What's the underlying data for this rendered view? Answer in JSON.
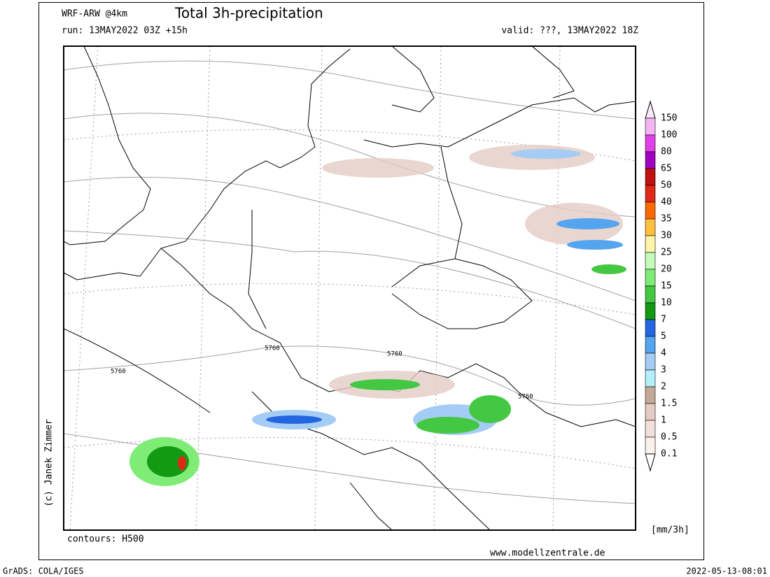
{
  "header": {
    "model": "WRF-ARW @4km",
    "title": "Total 3h-precipitation",
    "run": "run: 13MAY2022 03Z +15h",
    "valid": "valid: ???, 13MAY2022 18Z"
  },
  "map": {
    "contour_labels": [
      "5760",
      "5760",
      "5760",
      "5760"
    ],
    "contours_note": "contours: H500",
    "credit": "(c) Janek Zimmer",
    "website": "www.modellzentrale.de"
  },
  "colorbar": {
    "labels": [
      "150",
      "100",
      "80",
      "65",
      "50",
      "40",
      "35",
      "30",
      "25",
      "20",
      "15",
      "10",
      "7",
      "5",
      "4",
      "3",
      "2",
      "1.5",
      "1",
      "0.5",
      "0.1"
    ],
    "colors": [
      "#f4b4f4",
      "#e040e8",
      "#a000c0",
      "#c01010",
      "#e02818",
      "#ff6a00",
      "#ffc040",
      "#fff4a8",
      "#c4fcb8",
      "#80ec78",
      "#44c844",
      "#129a12",
      "#2266e0",
      "#54a4f0",
      "#a4ccf4",
      "#b4f0f8",
      "#c4a898",
      "#e4ccc4",
      "#f2e0da",
      "#fbf1ec"
    ],
    "top_color": "#fbe8fb",
    "bottom_color": "#ffffff",
    "unit": "[mm/3h]"
  },
  "footer": {
    "software": "GrADS: COLA/IGES",
    "timestamp": "2022-05-13-08:01"
  }
}
